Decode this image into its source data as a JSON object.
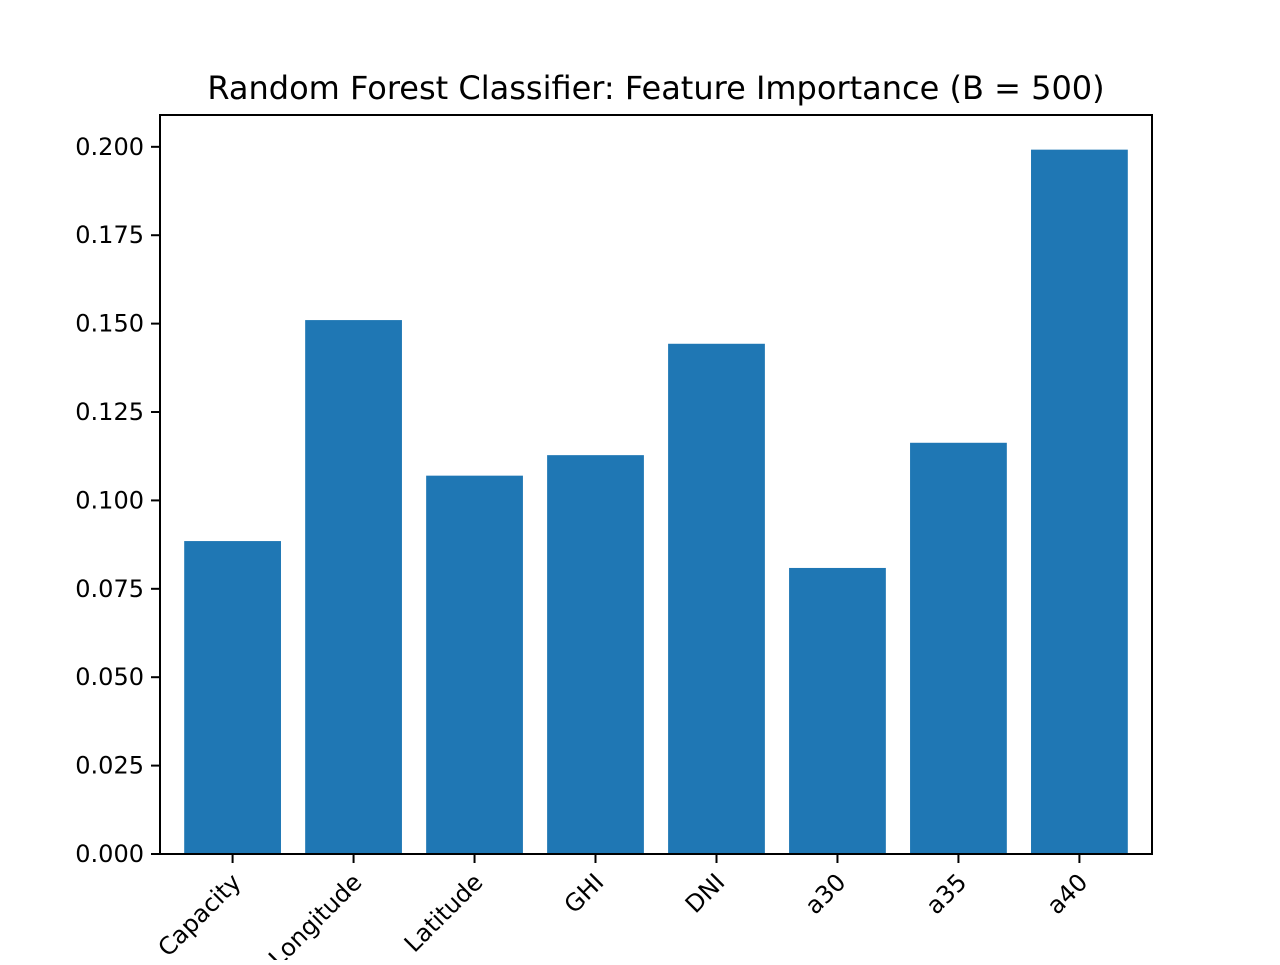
{
  "chart_data": {
    "type": "bar",
    "title": "Random Forest Classifier: Feature Importance (B = 500)",
    "xlabel": "",
    "ylabel": "",
    "categories": [
      "Capacity",
      "Longitude",
      "Latitude",
      "GHI",
      "DNI",
      "a30",
      "a35",
      "a40"
    ],
    "values": [
      0.0885,
      0.151,
      0.107,
      0.1128,
      0.1443,
      0.0809,
      0.1163,
      0.1992
    ],
    "ylim": [
      0,
      0.209
    ],
    "yticks": [
      0.0,
      0.025,
      0.05,
      0.075,
      0.1,
      0.125,
      0.15,
      0.175,
      0.2
    ],
    "ytick_labels": [
      "0.000",
      "0.025",
      "0.050",
      "0.075",
      "0.100",
      "0.125",
      "0.150",
      "0.175",
      "0.200"
    ],
    "xtick_rotation_deg": 45,
    "grid": false,
    "legend": "none",
    "bar_color": "#1f77b4"
  }
}
